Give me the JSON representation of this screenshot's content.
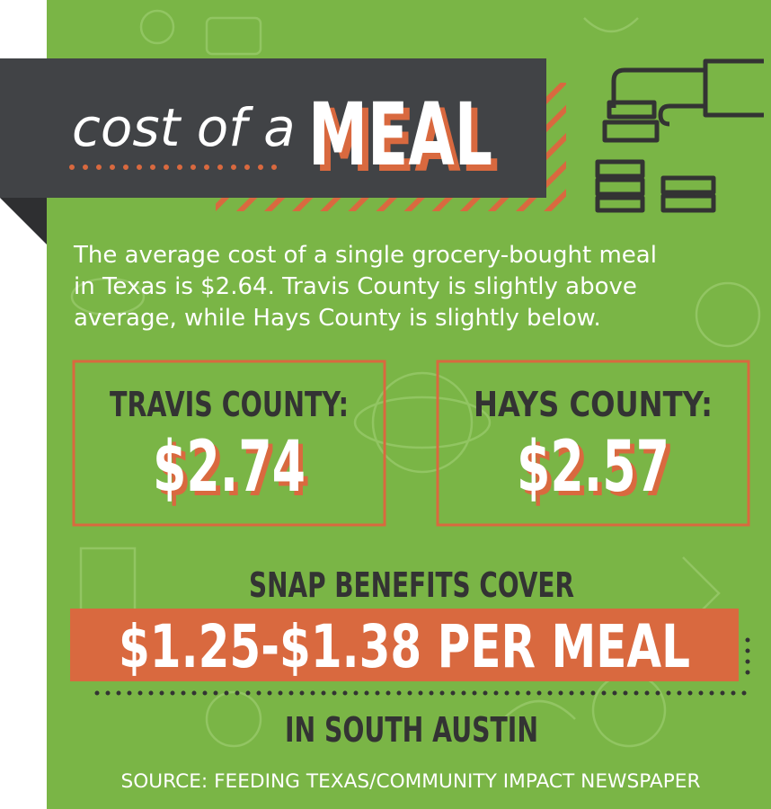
{
  "header": {
    "title_script": "cost of a",
    "title_main": "MEAL"
  },
  "intro": [
    "The average cost of a single grocery-bought meal",
    "in Texas is $2.64. Travis County is slightly above",
    "average, while Hays County is slightly below."
  ],
  "counties": [
    {
      "name": "TRAVIS COUNTY:",
      "cost": "$2.74"
    },
    {
      "name": "HAYS COUNTY:",
      "cost": "$2.57"
    }
  ],
  "snap": {
    "lead": "SNAP BENEFITS COVER",
    "range": "$1.25-$1.38 PER MEAL",
    "location": "IN SOUTH AUSTIN"
  },
  "source": "SOURCE: FEEDING TEXAS/COMMUNITY IMPACT NEWSPAPER"
}
